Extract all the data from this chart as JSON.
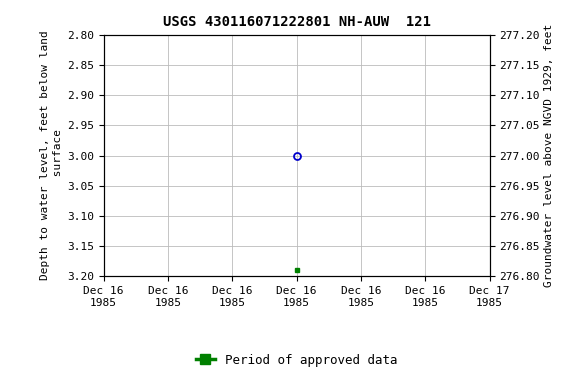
{
  "title": "USGS 430116071222801 NH-AUW  121",
  "ylabel_left": "Depth to water level, feet below land\n surface",
  "ylabel_right": "Groundwater level above NGVD 1929, feet",
  "ylim_left": [
    2.8,
    3.2
  ],
  "ylim_right": [
    276.8,
    277.2
  ],
  "left_ticks": [
    2.8,
    2.85,
    2.9,
    2.95,
    3.0,
    3.05,
    3.1,
    3.15,
    3.2
  ],
  "right_ticks": [
    277.2,
    277.15,
    277.1,
    277.05,
    277.0,
    276.95,
    276.9,
    276.85,
    276.8
  ],
  "circle_point_x_hours": 12,
  "circle_point_y": 3.0,
  "green_point_x_hours": 12,
  "green_point_y": 3.19,
  "circle_color": "#0000cc",
  "green_color": "#008000",
  "bg_color": "#ffffff",
  "grid_color": "#bbbbbb",
  "title_fontsize": 10,
  "axis_label_fontsize": 8,
  "tick_fontsize": 8,
  "legend_fontsize": 9,
  "x_tick_hours": [
    0,
    4,
    8,
    12,
    16,
    20,
    24
  ],
  "x_tick_labels": [
    "Dec 16\n1985",
    "Dec 16\n1985",
    "Dec 16\n1985",
    "Dec 16\n1985",
    "Dec 16\n1985",
    "Dec 16\n1985",
    "Dec 17\n1985"
  ],
  "legend_label": "Period of approved data"
}
